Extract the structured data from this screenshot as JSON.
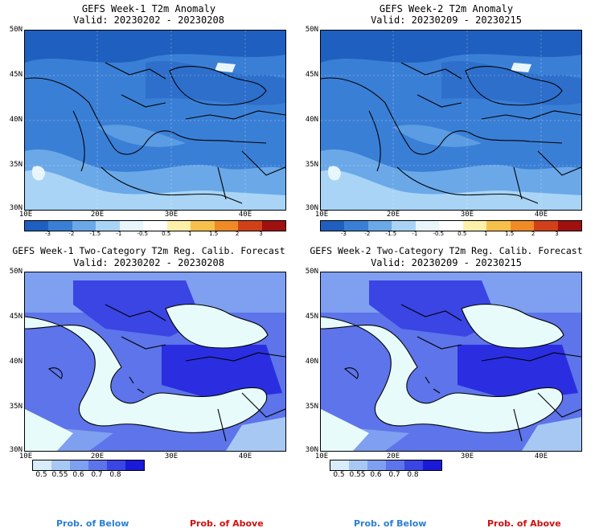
{
  "panels": [
    {
      "title": "GEFS Week-1 T2m Anomaly",
      "valid": "Valid: 20230202 - 20230208",
      "kind": "anomaly"
    },
    {
      "title": "GEFS Week-2 T2m Anomaly",
      "valid": "Valid: 20230209 - 20230215",
      "kind": "anomaly"
    },
    {
      "title": "GEFS Week-1 Two-Category T2m Reg. Calib. Forecast",
      "valid": "Valid: 20230202 - 20230208",
      "kind": "prob"
    },
    {
      "title": "GEFS Week-2 Two-Category T2m Reg. Calib. Forecast",
      "valid": "Valid: 20230209 - 20230215",
      "kind": "prob"
    }
  ],
  "axes": {
    "lat_labels": [
      "50N",
      "45N",
      "40N",
      "35N",
      "30N"
    ],
    "lon_labels": [
      "10E",
      "20E",
      "30E",
      "40E"
    ]
  },
  "anomaly_colorbar": {
    "labels": [
      "-3",
      "-2",
      "-1.5",
      "-1",
      "-0.5",
      "0.5",
      "1",
      "1.5",
      "2",
      "3"
    ],
    "colors": [
      "#1f5fbf",
      "#3a7fd6",
      "#6aa8e8",
      "#a9d4f5",
      "#e8f6fc",
      "#ffffff",
      "#fdf0a8",
      "#f7c04a",
      "#f08a24",
      "#d2401a",
      "#a01010"
    ]
  },
  "prob_colorbar": {
    "labels": [
      "0.5",
      "0.55",
      "0.6",
      "0.7",
      "0.8"
    ],
    "colors": [
      "#d8ecfb",
      "#a8c8f4",
      "#7f9ff0",
      "#5d74ea",
      "#3a45e4",
      "#1a1ad8"
    ]
  },
  "legend": {
    "below": "Prob. of Below",
    "above": "Prob. of Above"
  },
  "colors": {
    "sea": "#e8fbfb",
    "coast": "#000000"
  }
}
